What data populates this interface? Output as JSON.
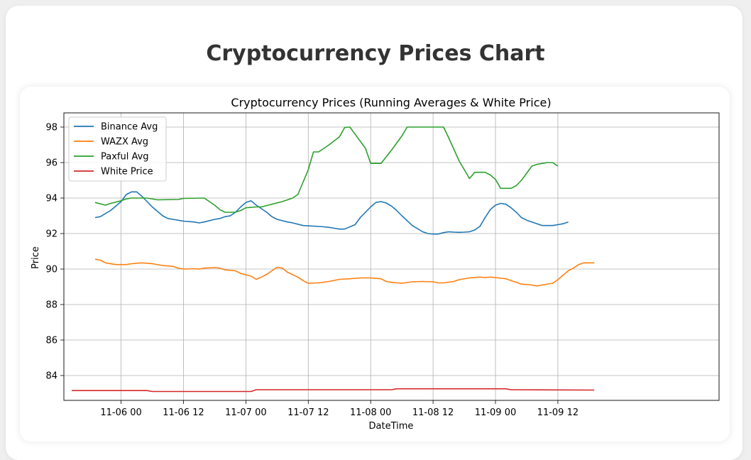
{
  "page": {
    "title": "Cryptocurrency Prices Chart"
  },
  "chart_data": {
    "type": "line",
    "title": "Cryptocurrency Prices (Running Averages & White Price)",
    "xlabel": "DateTime",
    "ylabel": "Price",
    "xlim": [
      -11,
      115
    ],
    "ylim": [
      82.6,
      98.8
    ],
    "grid": true,
    "legend_position": "top-left",
    "x_unit": "hours since 2023-11-06 00:00",
    "x_ticks": [
      {
        "value": 0,
        "label": "11-06 00"
      },
      {
        "value": 12,
        "label": "11-06 12"
      },
      {
        "value": 24,
        "label": "11-07 00"
      },
      {
        "value": 36,
        "label": "11-07 12"
      },
      {
        "value": 48,
        "label": "11-08 00"
      },
      {
        "value": 60,
        "label": "11-08 12"
      },
      {
        "value": 72,
        "label": "11-09 00"
      },
      {
        "value": 84,
        "label": "11-09 12"
      }
    ],
    "y_ticks": [
      {
        "value": 84,
        "label": "84"
      },
      {
        "value": 86,
        "label": "86"
      },
      {
        "value": 88,
        "label": "88"
      },
      {
        "value": 90,
        "label": "90"
      },
      {
        "value": 92,
        "label": "92"
      },
      {
        "value": 94,
        "label": "94"
      },
      {
        "value": 96,
        "label": "96"
      },
      {
        "value": 98,
        "label": "98"
      }
    ],
    "series": [
      {
        "name": "Binance Avg",
        "color": "#1f77b4",
        "points": [
          [
            -5,
            92.9
          ],
          [
            -4,
            92.95
          ],
          [
            -2,
            93.3
          ],
          [
            0,
            93.8
          ],
          [
            1,
            94.2
          ],
          [
            2,
            94.35
          ],
          [
            3,
            94.35
          ],
          [
            4,
            94.1
          ],
          [
            6,
            93.5
          ],
          [
            8,
            93.0
          ],
          [
            9,
            92.85
          ],
          [
            10,
            92.8
          ],
          [
            12,
            92.7
          ],
          [
            14,
            92.65
          ],
          [
            15,
            92.6
          ],
          [
            16,
            92.65
          ],
          [
            18,
            92.8
          ],
          [
            19,
            92.85
          ],
          [
            20,
            92.95
          ],
          [
            21,
            93.0
          ],
          [
            22,
            93.2
          ],
          [
            23,
            93.5
          ],
          [
            24,
            93.75
          ],
          [
            25,
            93.85
          ],
          [
            26,
            93.6
          ],
          [
            28,
            93.2
          ],
          [
            29,
            92.95
          ],
          [
            30,
            92.8
          ],
          [
            32,
            92.65
          ],
          [
            33,
            92.6
          ],
          [
            35,
            92.45
          ],
          [
            38,
            92.4
          ],
          [
            39,
            92.38
          ],
          [
            40,
            92.35
          ],
          [
            41,
            92.3
          ],
          [
            42,
            92.25
          ],
          [
            43,
            92.25
          ],
          [
            45,
            92.5
          ],
          [
            46,
            92.9
          ],
          [
            48,
            93.5
          ],
          [
            49,
            93.75
          ],
          [
            50,
            93.8
          ],
          [
            51,
            93.72
          ],
          [
            52,
            93.55
          ],
          [
            53,
            93.3
          ],
          [
            54,
            93.0
          ],
          [
            56,
            92.45
          ],
          [
            58,
            92.1
          ],
          [
            59,
            92.0
          ],
          [
            60,
            91.97
          ],
          [
            61,
            91.97
          ],
          [
            62,
            92.05
          ],
          [
            63,
            92.1
          ],
          [
            64,
            92.08
          ],
          [
            65,
            92.07
          ],
          [
            66,
            92.08
          ],
          [
            67,
            92.1
          ],
          [
            68,
            92.2
          ],
          [
            69,
            92.4
          ],
          [
            70,
            92.9
          ],
          [
            71,
            93.35
          ],
          [
            72,
            93.6
          ],
          [
            73,
            93.7
          ],
          [
            74,
            93.65
          ],
          [
            75,
            93.45
          ],
          [
            76,
            93.2
          ],
          [
            77,
            92.9
          ],
          [
            78,
            92.75
          ],
          [
            80,
            92.55
          ],
          [
            81,
            92.45
          ],
          [
            83,
            92.45
          ],
          [
            84,
            92.5
          ],
          [
            85,
            92.55
          ],
          [
            86,
            92.65
          ]
        ]
      },
      {
        "name": "WAZX Avg",
        "color": "#ff7f0e",
        "points": [
          [
            -5,
            90.55
          ],
          [
            -4,
            90.5
          ],
          [
            -3,
            90.35
          ],
          [
            -1,
            90.25
          ],
          [
            1,
            90.25
          ],
          [
            2,
            90.3
          ],
          [
            4,
            90.35
          ],
          [
            6,
            90.3
          ],
          [
            8,
            90.2
          ],
          [
            10,
            90.15
          ],
          [
            11,
            90.05
          ],
          [
            12,
            90.0
          ],
          [
            14,
            90.02
          ],
          [
            15,
            90.0
          ],
          [
            16,
            90.05
          ],
          [
            18,
            90.08
          ],
          [
            19,
            90.05
          ],
          [
            20,
            89.95
          ],
          [
            22,
            89.9
          ],
          [
            23,
            89.75
          ],
          [
            25,
            89.6
          ],
          [
            26,
            89.42
          ],
          [
            27,
            89.55
          ],
          [
            28,
            89.7
          ],
          [
            29,
            89.9
          ],
          [
            30,
            90.1
          ],
          [
            31,
            90.05
          ],
          [
            32,
            89.82
          ],
          [
            34,
            89.55
          ],
          [
            35,
            89.35
          ],
          [
            36,
            89.2
          ],
          [
            38,
            89.22
          ],
          [
            40,
            89.3
          ],
          [
            42,
            89.42
          ],
          [
            44,
            89.45
          ],
          [
            46,
            89.5
          ],
          [
            48,
            89.5
          ],
          [
            50,
            89.45
          ],
          [
            51,
            89.3
          ],
          [
            52,
            89.25
          ],
          [
            54,
            89.2
          ],
          [
            56,
            89.28
          ],
          [
            58,
            89.3
          ],
          [
            60,
            89.28
          ],
          [
            61,
            89.22
          ],
          [
            62,
            89.22
          ],
          [
            64,
            89.3
          ],
          [
            65,
            89.4
          ],
          [
            67,
            89.5
          ],
          [
            69,
            89.55
          ],
          [
            70,
            89.52
          ],
          [
            71,
            89.55
          ],
          [
            72,
            89.52
          ],
          [
            74,
            89.45
          ],
          [
            76,
            89.25
          ],
          [
            77,
            89.15
          ],
          [
            79,
            89.1
          ],
          [
            80,
            89.05
          ],
          [
            81,
            89.1
          ],
          [
            83,
            89.2
          ],
          [
            84,
            89.4
          ],
          [
            85,
            89.65
          ],
          [
            86,
            89.9
          ],
          [
            87,
            90.05
          ],
          [
            88,
            90.25
          ],
          [
            89,
            90.35
          ],
          [
            91,
            90.35
          ]
        ]
      },
      {
        "name": "Paxful Avg",
        "color": "#2ca02c",
        "points": [
          [
            -5,
            93.75
          ],
          [
            -3,
            93.6
          ],
          [
            -2,
            93.7
          ],
          [
            0,
            93.85
          ],
          [
            1,
            93.95
          ],
          [
            2,
            94.0
          ],
          [
            5,
            94.0
          ],
          [
            7,
            93.9
          ],
          [
            11,
            93.92
          ],
          [
            12,
            93.98
          ],
          [
            16,
            94.0
          ],
          [
            18,
            93.6
          ],
          [
            19,
            93.35
          ],
          [
            20,
            93.2
          ],
          [
            22,
            93.2
          ],
          [
            23,
            93.3
          ],
          [
            24,
            93.45
          ],
          [
            26,
            93.5
          ],
          [
            27,
            93.5
          ],
          [
            29,
            93.65
          ],
          [
            31,
            93.8
          ],
          [
            33,
            94.0
          ],
          [
            34,
            94.2
          ],
          [
            35,
            94.9
          ],
          [
            36,
            95.6
          ],
          [
            37,
            96.6
          ],
          [
            38,
            96.6
          ],
          [
            40,
            97.0
          ],
          [
            42,
            97.45
          ],
          [
            43,
            97.98
          ],
          [
            44,
            98.0
          ],
          [
            47,
            96.8
          ],
          [
            48,
            95.95
          ],
          [
            50,
            95.95
          ],
          [
            52,
            96.7
          ],
          [
            54,
            97.5
          ],
          [
            55,
            98.0
          ],
          [
            62,
            98.0
          ],
          [
            63,
            97.4
          ],
          [
            65,
            96.1
          ],
          [
            66,
            95.6
          ],
          [
            67,
            95.1
          ],
          [
            68,
            95.45
          ],
          [
            70,
            95.45
          ],
          [
            71,
            95.3
          ],
          [
            72,
            95.05
          ],
          [
            73,
            94.55
          ],
          [
            75,
            94.55
          ],
          [
            76,
            94.7
          ],
          [
            77,
            95.0
          ],
          [
            78,
            95.4
          ],
          [
            79,
            95.8
          ],
          [
            80,
            95.9
          ],
          [
            82,
            96.0
          ],
          [
            83,
            96.0
          ],
          [
            84,
            95.8
          ]
        ]
      },
      {
        "name": "White Price",
        "color": "#d62728",
        "points": [
          [
            -9.5,
            83.15
          ],
          [
            -6,
            83.15
          ],
          [
            5,
            83.15
          ],
          [
            6,
            83.1
          ],
          [
            7,
            83.1
          ],
          [
            11,
            83.1
          ],
          [
            25,
            83.1
          ],
          [
            26,
            83.2
          ],
          [
            28,
            83.2
          ],
          [
            32,
            83.2
          ],
          [
            52,
            83.2
          ],
          [
            53,
            83.25
          ],
          [
            54,
            83.25
          ],
          [
            74,
            83.25
          ],
          [
            75,
            83.2
          ],
          [
            76,
            83.2
          ],
          [
            91,
            83.18
          ]
        ]
      }
    ]
  }
}
